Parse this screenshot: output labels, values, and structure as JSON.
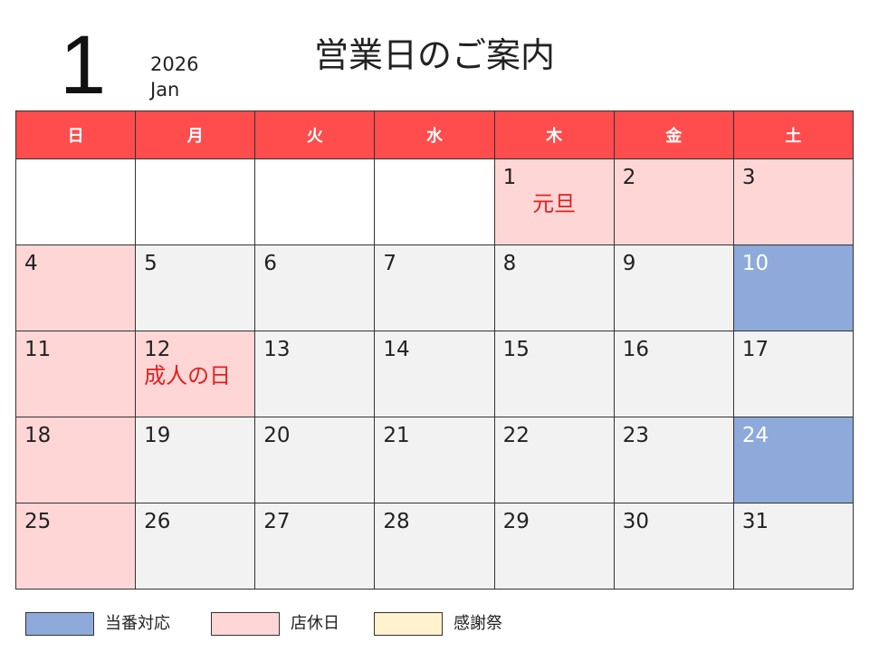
{
  "header": {
    "month_number": "1",
    "year": "2026",
    "month_en": "Jan",
    "title": "営業日のご案内"
  },
  "weekdays": [
    "日",
    "月",
    "火",
    "水",
    "木",
    "金",
    "土"
  ],
  "weeks": [
    [
      {
        "day": "",
        "type": "blank"
      },
      {
        "day": "",
        "type": "blank"
      },
      {
        "day": "",
        "type": "blank"
      },
      {
        "day": "",
        "type": "blank"
      },
      {
        "day": "1",
        "type": "holiday",
        "event": "元旦"
      },
      {
        "day": "2",
        "type": "holiday"
      },
      {
        "day": "3",
        "type": "holiday"
      }
    ],
    [
      {
        "day": "4",
        "type": "holiday"
      },
      {
        "day": "5",
        "type": "normal"
      },
      {
        "day": "6",
        "type": "normal"
      },
      {
        "day": "7",
        "type": "normal"
      },
      {
        "day": "8",
        "type": "normal"
      },
      {
        "day": "9",
        "type": "normal"
      },
      {
        "day": "10",
        "type": "duty"
      }
    ],
    [
      {
        "day": "11",
        "type": "holiday"
      },
      {
        "day": "12",
        "type": "holiday",
        "event": "成人の日"
      },
      {
        "day": "13",
        "type": "normal"
      },
      {
        "day": "14",
        "type": "normal"
      },
      {
        "day": "15",
        "type": "normal"
      },
      {
        "day": "16",
        "type": "normal"
      },
      {
        "day": "17",
        "type": "normal"
      }
    ],
    [
      {
        "day": "18",
        "type": "holiday"
      },
      {
        "day": "19",
        "type": "normal"
      },
      {
        "day": "20",
        "type": "normal"
      },
      {
        "day": "21",
        "type": "normal"
      },
      {
        "day": "22",
        "type": "normal"
      },
      {
        "day": "23",
        "type": "normal"
      },
      {
        "day": "24",
        "type": "duty"
      }
    ],
    [
      {
        "day": "25",
        "type": "holiday"
      },
      {
        "day": "26",
        "type": "normal"
      },
      {
        "day": "27",
        "type": "normal"
      },
      {
        "day": "28",
        "type": "normal"
      },
      {
        "day": "29",
        "type": "normal"
      },
      {
        "day": "30",
        "type": "normal"
      },
      {
        "day": "31",
        "type": "normal"
      }
    ]
  ],
  "legend": [
    {
      "label": "当番対応",
      "color": "#8eaadb"
    },
    {
      "label": "店休日",
      "color": "#ffd6d6"
    },
    {
      "label": "感謝祭",
      "color": "#fff2cc"
    }
  ],
  "colors": {
    "header_bar": "#ff4c4c",
    "event_text": "#e0201e",
    "weekday_cell": "#f2f2f2"
  }
}
